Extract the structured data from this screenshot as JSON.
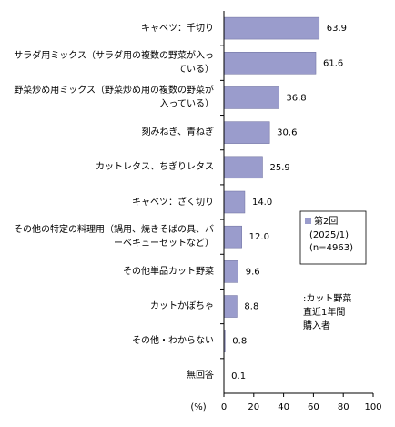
{
  "chart_data": {
    "type": "barh",
    "categories": [
      "キャベツ：千切り",
      "サラダ用ミックス（サラダ用の複数の野菜が入っている）",
      "野菜炒め用ミックス（野菜炒め用の複数の野菜が入っている）",
      "刻みねぎ、青ねぎ",
      "カットレタス、ちぎりレタス",
      "キャベツ：ざく切り",
      "その他の特定の料理用（鍋用、焼きそばの具、バーベキューセットなど）",
      "その他単品カット野菜",
      "カットかぼちゃ",
      "その他・わからない",
      "無回答"
    ],
    "series": [
      {
        "name": "第2回",
        "color": "#9a9ccc",
        "values": [
          63.9,
          61.6,
          36.8,
          30.6,
          25.9,
          14.0,
          12.0,
          9.6,
          8.8,
          0.8,
          0.1
        ],
        "value_labels": [
          "63.9",
          "61.6",
          "36.8",
          "30.6",
          "25.9",
          "14.0",
          "12.0",
          "9.6",
          "8.8",
          "0.8",
          "0.1"
        ]
      }
    ],
    "legend_notes": [
      "(2025/1)",
      "(n=4963)"
    ],
    "annotation": [
      ":カット野菜",
      "直近1年間",
      "購入者"
    ],
    "xlabel": "(%)",
    "xlim": [
      0,
      100
    ],
    "xticks": [
      0,
      20,
      40,
      60,
      80,
      100
    ]
  }
}
